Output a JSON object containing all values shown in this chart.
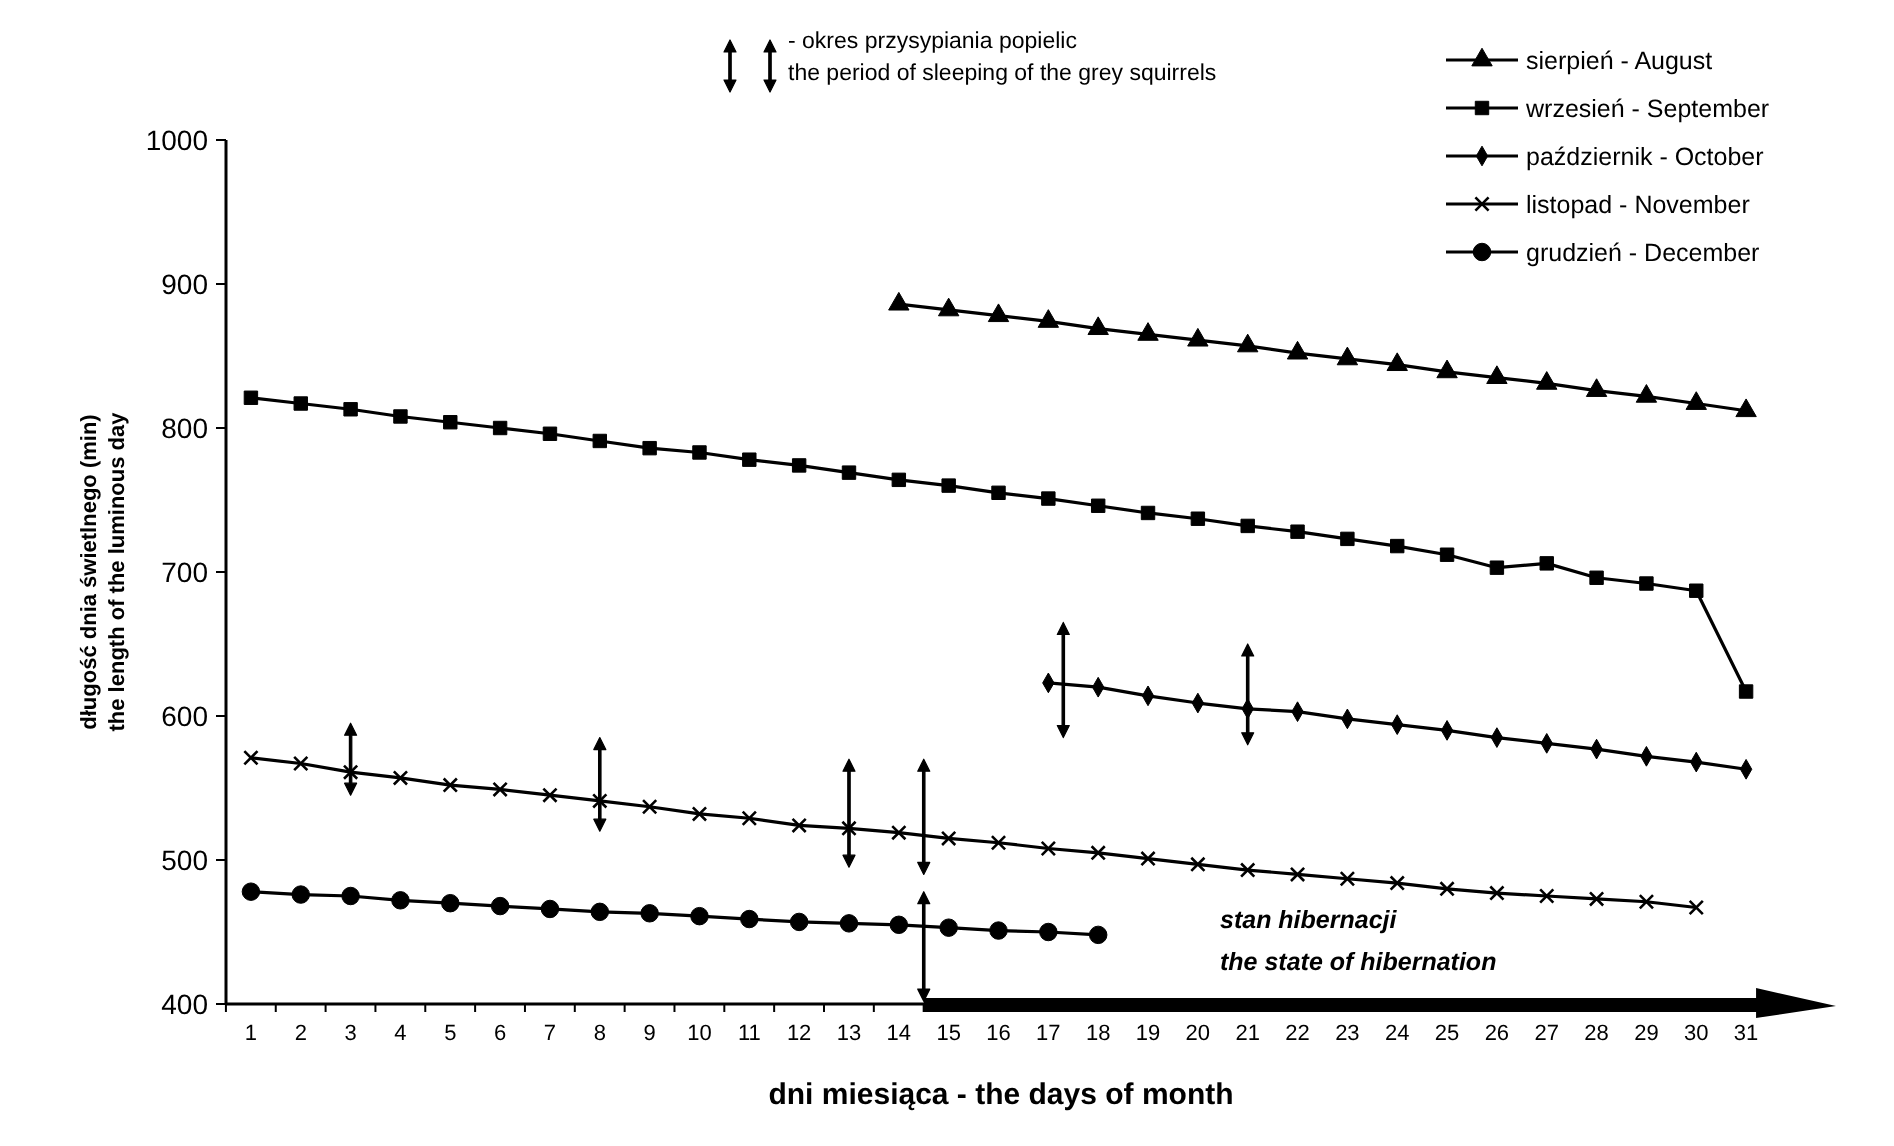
{
  "chart_data": {
    "type": "line",
    "ylabel": "długość dnia świetlnego (min)\nthe length of the luminous day",
    "xlabel": "dni miesiąca - the days of month",
    "xlim": [
      0.5,
      31.6
    ],
    "xticks": [
      1,
      2,
      3,
      4,
      5,
      6,
      7,
      8,
      9,
      10,
      11,
      12,
      13,
      14,
      15,
      16,
      17,
      18,
      19,
      20,
      21,
      22,
      23,
      24,
      25,
      26,
      27,
      28,
      29,
      30,
      31
    ],
    "ylim": [
      400,
      1000
    ],
    "yticks": [
      400,
      500,
      600,
      700,
      800,
      900,
      1000
    ],
    "grid": false,
    "legend": "top right",
    "line_style": "solid",
    "annotations": [
      "- okres przysypiania popielic",
      "the period of sleeping of the grey squirrels",
      "stan hibernacji",
      "the state of hibernation"
    ],
    "series": [
      {
        "name": "sierpień - August",
        "color": "#000000",
        "marker": "triangle",
        "x": [
          14,
          15,
          16,
          17,
          18,
          19,
          20,
          21,
          22,
          23,
          24,
          25,
          26,
          27,
          28,
          29,
          30,
          31
        ],
        "values": [
          886,
          882,
          878,
          874,
          869,
          865,
          861,
          857,
          852,
          848,
          844,
          839,
          835,
          831,
          826,
          822,
          817,
          812
        ]
      },
      {
        "name": "wrzesień - September",
        "color": "#000000",
        "marker": "square",
        "x": [
          1,
          2,
          3,
          4,
          5,
          6,
          7,
          8,
          9,
          10,
          11,
          12,
          13,
          14,
          15,
          16,
          17,
          18,
          19,
          20,
          21,
          22,
          23,
          24,
          25,
          26,
          27,
          28,
          29,
          30,
          31
        ],
        "values": [
          821,
          817,
          813,
          808,
          804,
          800,
          796,
          791,
          786,
          783,
          778,
          774,
          769,
          764,
          760,
          755,
          751,
          746,
          741,
          737,
          732,
          728,
          723,
          718,
          712,
          703,
          706,
          696,
          692,
          687,
          617
        ]
      },
      {
        "name": "październik - October",
        "color": "#000000",
        "marker": "diamond",
        "x": [
          17,
          18,
          19,
          20,
          21,
          22,
          23,
          24,
          25,
          26,
          27,
          28,
          29,
          30,
          31
        ],
        "values": [
          623,
          620,
          614,
          609,
          605,
          603,
          598,
          594,
          590,
          585,
          581,
          577,
          572,
          568,
          563
        ]
      },
      {
        "name": "listopad - November",
        "color": "#000000",
        "marker": "cross",
        "x": [
          1,
          2,
          3,
          4,
          5,
          6,
          7,
          8,
          9,
          10,
          11,
          12,
          13,
          14,
          15,
          16,
          17,
          18,
          19,
          20,
          21,
          22,
          23,
          24,
          25,
          26,
          27,
          28,
          29,
          30
        ],
        "values": [
          571,
          567,
          561,
          557,
          552,
          549,
          545,
          541,
          537,
          532,
          529,
          524,
          522,
          519,
          515,
          512,
          508,
          505,
          501,
          497,
          493,
          490,
          487,
          484,
          480,
          477,
          475,
          473,
          471,
          467
        ]
      },
      {
        "name": "grudzień - December",
        "color": "#000000",
        "marker": "circle",
        "x": [
          1,
          2,
          3,
          4,
          5,
          6,
          7,
          8,
          9,
          10,
          11,
          12,
          13,
          14,
          15,
          16,
          17,
          18
        ],
        "values": [
          478,
          476,
          475,
          472,
          470,
          468,
          466,
          464,
          463,
          461,
          459,
          457,
          456,
          455,
          453,
          451,
          450,
          448
        ]
      }
    ]
  }
}
